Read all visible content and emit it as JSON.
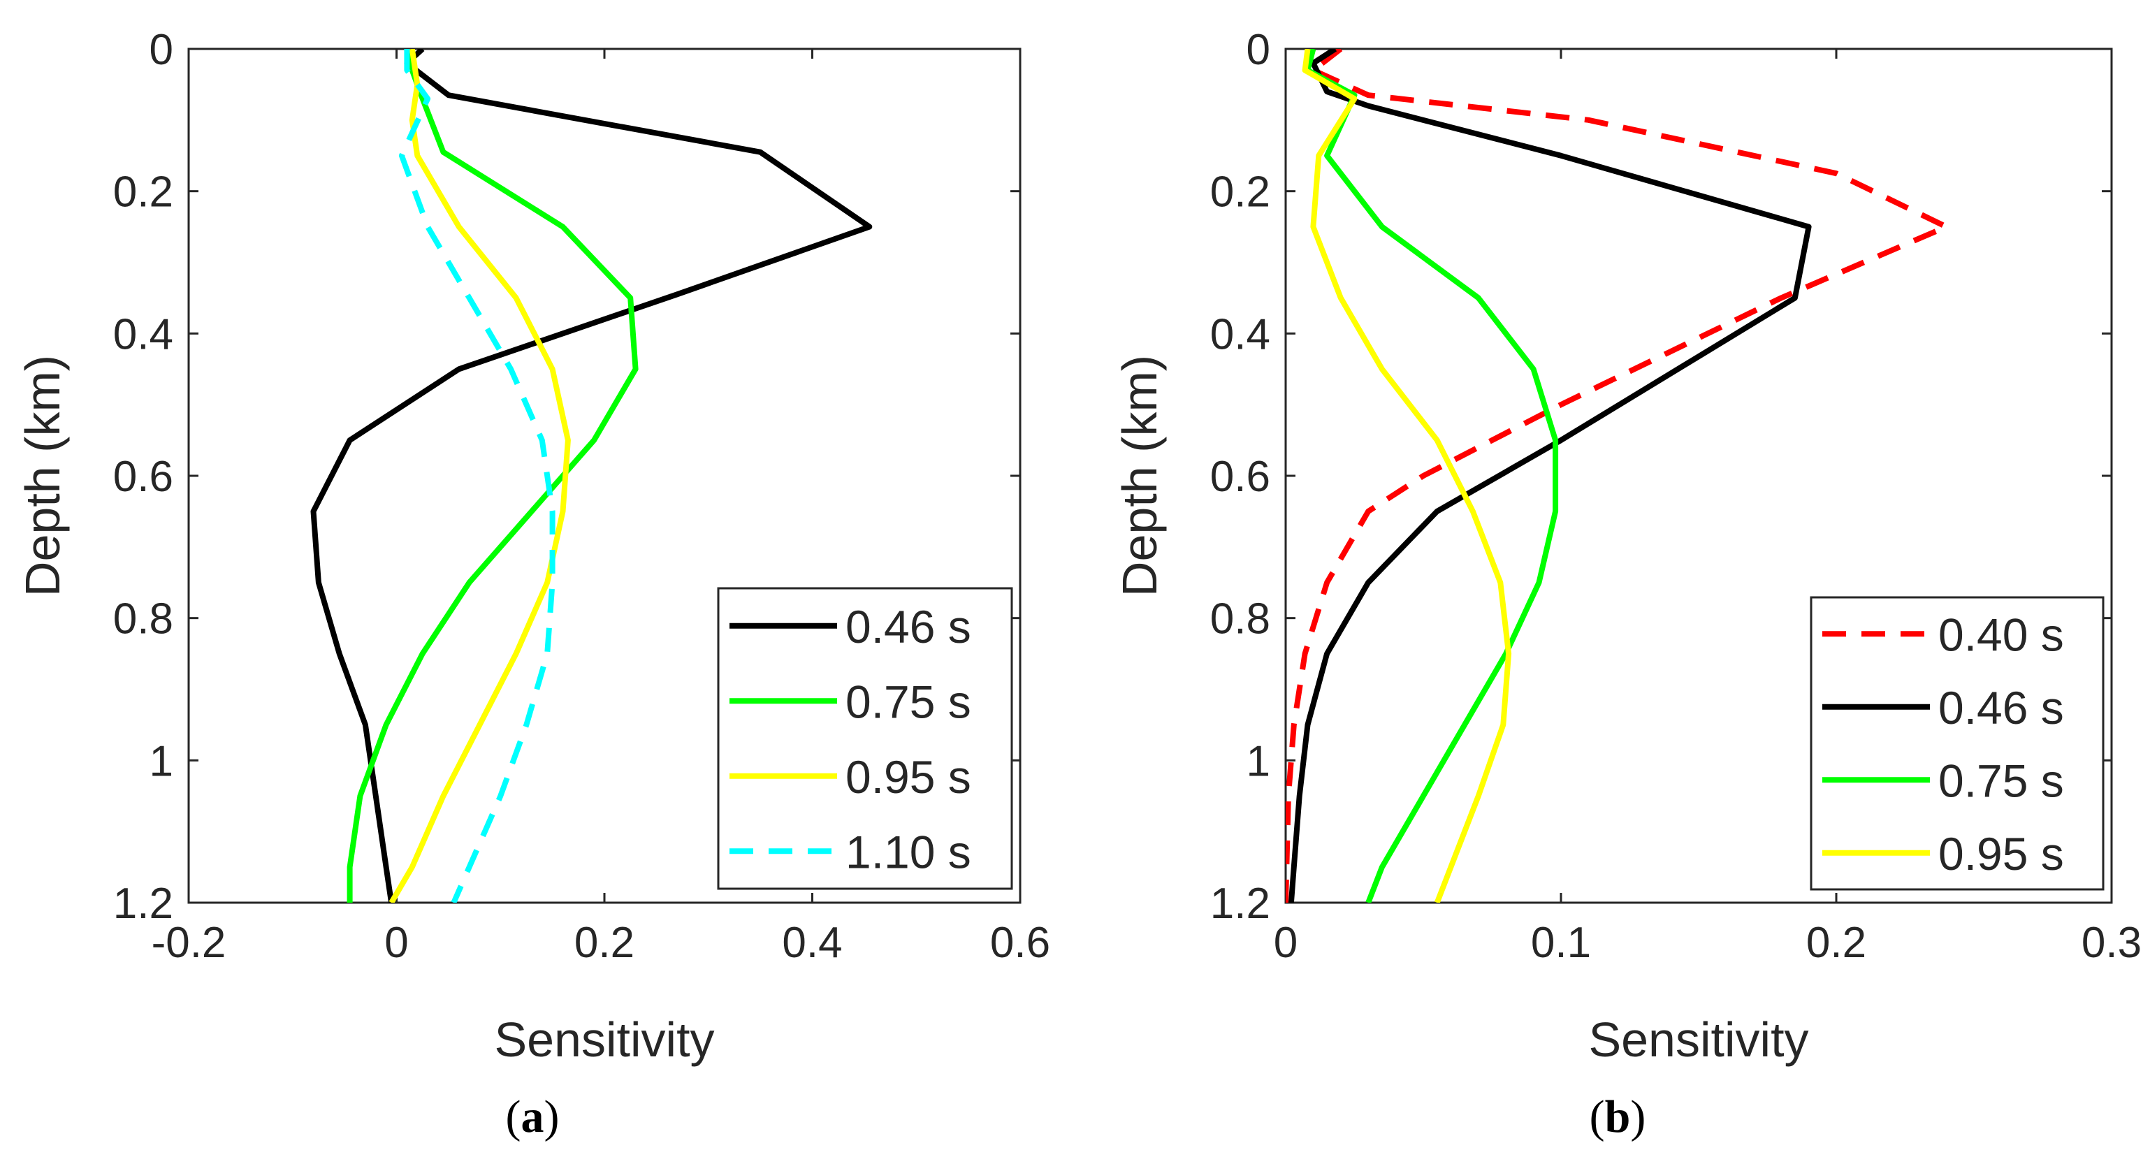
{
  "chart_data": [
    {
      "panel_label": "a",
      "type": "line",
      "xlabel": "Sensitivity",
      "ylabel": "Depth (km)",
      "xlim": [
        -0.2,
        0.6
      ],
      "ylim": [
        0,
        1.2
      ],
      "y_reversed": true,
      "x_ticks": [
        "-0.2",
        "0",
        "0.2",
        "0.4",
        "0.6"
      ],
      "x_tick_values": [
        -0.2,
        0,
        0.2,
        0.4,
        0.6
      ],
      "y_ticks": [
        "0",
        "0.2",
        "0.4",
        "0.6",
        "0.8",
        "1",
        "1.2"
      ],
      "y_tick_values": [
        0,
        0.2,
        0.4,
        0.6,
        0.8,
        1.0,
        1.2
      ],
      "legend_position": "bottom-right",
      "series": [
        {
          "name": "0.46 s",
          "color": "#000000",
          "dash": "solid",
          "points": [
            [
              0.025,
              0.0
            ],
            [
              0.01,
              0.02
            ],
            [
              0.05,
              0.065
            ],
            [
              0.35,
              0.145
            ],
            [
              0.455,
              0.25
            ],
            [
              0.27,
              0.345
            ],
            [
              0.06,
              0.45
            ],
            [
              -0.045,
              0.55
            ],
            [
              -0.08,
              0.65
            ],
            [
              -0.075,
              0.75
            ],
            [
              -0.055,
              0.85
            ],
            [
              -0.03,
              0.95
            ],
            [
              -0.02,
              1.05
            ],
            [
              -0.01,
              1.15
            ],
            [
              -0.005,
              1.2
            ]
          ]
        },
        {
          "name": "0.75 s",
          "color": "#00ff00",
          "dash": "solid",
          "points": [
            [
              0.01,
              0.0
            ],
            [
              0.015,
              0.03
            ],
            [
              0.025,
              0.07
            ],
            [
              0.045,
              0.145
            ],
            [
              0.16,
              0.25
            ],
            [
              0.225,
              0.35
            ],
            [
              0.23,
              0.45
            ],
            [
              0.19,
              0.55
            ],
            [
              0.13,
              0.65
            ],
            [
              0.07,
              0.75
            ],
            [
              0.025,
              0.85
            ],
            [
              -0.01,
              0.95
            ],
            [
              -0.035,
              1.05
            ],
            [
              -0.045,
              1.15
            ],
            [
              -0.045,
              1.2
            ]
          ]
        },
        {
          "name": "0.95 s",
          "color": "#ffff00",
          "dash": "solid",
          "points": [
            [
              0.015,
              0.0
            ],
            [
              0.02,
              0.05
            ],
            [
              0.015,
              0.1
            ],
            [
              0.02,
              0.15
            ],
            [
              0.06,
              0.25
            ],
            [
              0.115,
              0.35
            ],
            [
              0.15,
              0.45
            ],
            [
              0.165,
              0.55
            ],
            [
              0.16,
              0.65
            ],
            [
              0.145,
              0.75
            ],
            [
              0.115,
              0.85
            ],
            [
              0.08,
              0.95
            ],
            [
              0.045,
              1.05
            ],
            [
              0.015,
              1.15
            ],
            [
              -0.005,
              1.2
            ]
          ]
        },
        {
          "name": "1.10 s",
          "color": "#00ffff",
          "dash": "dashed",
          "points": [
            [
              0.01,
              0.0
            ],
            [
              0.01,
              0.03
            ],
            [
              0.03,
              0.07
            ],
            [
              0.005,
              0.15
            ],
            [
              0.03,
              0.25
            ],
            [
              0.07,
              0.35
            ],
            [
              0.11,
              0.45
            ],
            [
              0.14,
              0.55
            ],
            [
              0.15,
              0.65
            ],
            [
              0.15,
              0.75
            ],
            [
              0.145,
              0.85
            ],
            [
              0.125,
              0.95
            ],
            [
              0.1,
              1.05
            ],
            [
              0.07,
              1.15
            ],
            [
              0.055,
              1.2
            ]
          ]
        }
      ]
    },
    {
      "panel_label": "b",
      "type": "line",
      "xlabel": "Sensitivity",
      "ylabel": "Depth (km)",
      "xlim": [
        0,
        0.3
      ],
      "ylim": [
        0,
        1.2
      ],
      "y_reversed": true,
      "x_ticks": [
        "0",
        "0.1",
        "0.2",
        "0.3"
      ],
      "x_tick_values": [
        0,
        0.1,
        0.2,
        0.3
      ],
      "y_ticks": [
        "0",
        "0.2",
        "0.4",
        "0.6",
        "0.8",
        "1",
        "1.2"
      ],
      "y_tick_values": [
        0,
        0.2,
        0.4,
        0.6,
        0.8,
        1.0,
        1.2
      ],
      "legend_position": "bottom-right",
      "series": [
        {
          "name": "0.40 s",
          "color": "#ff0000",
          "dash": "dashed",
          "points": [
            [
              0.02,
              0.0
            ],
            [
              0.01,
              0.03
            ],
            [
              0.03,
              0.065
            ],
            [
              0.11,
              0.1
            ],
            [
              0.2,
              0.175
            ],
            [
              0.24,
              0.25
            ],
            [
              0.18,
              0.35
            ],
            [
              0.1,
              0.5
            ],
            [
              0.05,
              0.6
            ],
            [
              0.03,
              0.65
            ],
            [
              0.015,
              0.75
            ],
            [
              0.007,
              0.85
            ],
            [
              0.003,
              0.95
            ],
            [
              0.001,
              1.05
            ],
            [
              0.0,
              1.2
            ]
          ]
        },
        {
          "name": "0.46 s",
          "color": "#000000",
          "dash": "solid",
          "points": [
            [
              0.018,
              0.0
            ],
            [
              0.01,
              0.02
            ],
            [
              0.015,
              0.06
            ],
            [
              0.03,
              0.08
            ],
            [
              0.1,
              0.15
            ],
            [
              0.19,
              0.25
            ],
            [
              0.185,
              0.35
            ],
            [
              0.1,
              0.55
            ],
            [
              0.055,
              0.65
            ],
            [
              0.03,
              0.75
            ],
            [
              0.015,
              0.85
            ],
            [
              0.008,
              0.95
            ],
            [
              0.005,
              1.05
            ],
            [
              0.003,
              1.15
            ],
            [
              0.002,
              1.2
            ]
          ]
        },
        {
          "name": "0.75 s",
          "color": "#00ff00",
          "dash": "solid",
          "points": [
            [
              0.01,
              0.0
            ],
            [
              0.008,
              0.03
            ],
            [
              0.025,
              0.065
            ],
            [
              0.015,
              0.15
            ],
            [
              0.035,
              0.25
            ],
            [
              0.07,
              0.35
            ],
            [
              0.09,
              0.45
            ],
            [
              0.098,
              0.55
            ],
            [
              0.098,
              0.65
            ],
            [
              0.092,
              0.75
            ],
            [
              0.08,
              0.85
            ],
            [
              0.065,
              0.95
            ],
            [
              0.05,
              1.05
            ],
            [
              0.035,
              1.15
            ],
            [
              0.03,
              1.2
            ]
          ]
        },
        {
          "name": "0.95 s",
          "color": "#ffff00",
          "dash": "solid",
          "points": [
            [
              0.008,
              0.0
            ],
            [
              0.007,
              0.03
            ],
            [
              0.025,
              0.07
            ],
            [
              0.012,
              0.15
            ],
            [
              0.01,
              0.25
            ],
            [
              0.02,
              0.35
            ],
            [
              0.035,
              0.45
            ],
            [
              0.055,
              0.55
            ],
            [
              0.068,
              0.65
            ],
            [
              0.078,
              0.75
            ],
            [
              0.081,
              0.85
            ],
            [
              0.079,
              0.95
            ],
            [
              0.07,
              1.05
            ],
            [
              0.06,
              1.15
            ],
            [
              0.055,
              1.2
            ]
          ]
        }
      ]
    }
  ],
  "captions": {
    "a": {
      "open": "(",
      "letter": "a",
      "close": ")"
    },
    "b": {
      "open": "(",
      "letter": "b",
      "close": ")"
    }
  }
}
